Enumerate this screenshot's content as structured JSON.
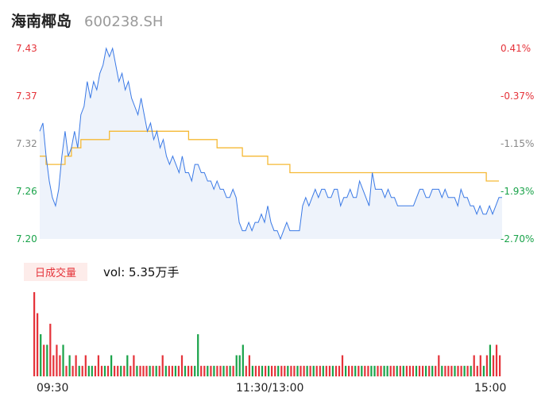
{
  "header": {
    "name": "海南椰岛",
    "code": "600238.SH"
  },
  "volume": {
    "badge": "日成交量",
    "text": "vol: 5.35万手"
  },
  "colors": {
    "price_line": "#3b7ae6",
    "avg_line": "#f5b935",
    "up": "#e5333a",
    "down": "#1aa34a",
    "neutral": "#888888"
  },
  "chart_data": [
    {
      "type": "line",
      "series": [
        {
          "values": [
            7.33,
            7.34,
            7.3,
            7.27,
            7.25,
            7.24,
            7.26,
            7.3,
            7.33,
            7.3,
            7.31,
            7.33,
            7.31,
            7.35,
            7.36,
            7.39,
            7.37,
            7.39,
            7.38,
            7.4,
            7.41,
            7.43,
            7.42,
            7.43,
            7.41,
            7.39,
            7.4,
            7.38,
            7.39,
            7.37,
            7.36,
            7.35,
            7.37,
            7.35,
            7.33,
            7.34,
            7.32,
            7.33,
            7.31,
            7.32,
            7.3,
            7.29,
            7.3,
            7.29,
            7.28,
            7.3,
            7.28,
            7.28,
            7.27,
            7.29,
            7.29,
            7.28,
            7.28,
            7.27,
            7.27,
            7.26,
            7.27,
            7.26,
            7.26,
            7.25,
            7.25,
            7.26,
            7.25,
            7.22,
            7.21,
            7.21,
            7.22,
            7.21,
            7.22,
            7.22,
            7.23,
            7.22,
            7.24,
            7.22,
            7.21,
            7.21,
            7.2,
            7.21,
            7.22,
            7.21,
            7.21,
            7.21,
            7.21,
            7.24,
            7.25,
            7.24,
            7.25,
            7.26,
            7.25,
            7.26,
            7.26,
            7.25,
            7.25,
            7.26,
            7.26,
            7.24,
            7.25,
            7.25,
            7.26,
            7.25,
            7.25,
            7.27,
            7.26,
            7.25,
            7.24,
            7.28,
            7.26,
            7.26,
            7.26,
            7.25,
            7.26,
            7.25,
            7.25,
            7.24,
            7.24,
            7.24,
            7.24,
            7.24,
            7.24,
            7.25,
            7.26,
            7.26,
            7.25,
            7.25,
            7.26,
            7.26,
            7.26,
            7.25,
            7.26,
            7.25,
            7.25,
            7.25,
            7.24,
            7.26,
            7.25,
            7.25,
            7.24,
            7.24,
            7.23,
            7.24,
            7.23,
            7.23,
            7.24,
            7.23,
            7.24,
            7.25,
            7.25
          ]
        },
        {
          "values": [
            7.3,
            7.3,
            7.29,
            7.29,
            7.29,
            7.29,
            7.29,
            7.29,
            7.3,
            7.3,
            7.31,
            7.31,
            7.31,
            7.32,
            7.32,
            7.32,
            7.32,
            7.32,
            7.32,
            7.32,
            7.32,
            7.32,
            7.33,
            7.33,
            7.33,
            7.33,
            7.33,
            7.33,
            7.33,
            7.33,
            7.33,
            7.33,
            7.33,
            7.33,
            7.33,
            7.33,
            7.33,
            7.33,
            7.33,
            7.33,
            7.33,
            7.33,
            7.33,
            7.33,
            7.33,
            7.33,
            7.33,
            7.32,
            7.32,
            7.32,
            7.32,
            7.32,
            7.32,
            7.32,
            7.32,
            7.32,
            7.31,
            7.31,
            7.31,
            7.31,
            7.31,
            7.31,
            7.31,
            7.31,
            7.3,
            7.3,
            7.3,
            7.3,
            7.3,
            7.3,
            7.3,
            7.3,
            7.29,
            7.29,
            7.29,
            7.29,
            7.29,
            7.29,
            7.29,
            7.28,
            7.28,
            7.28,
            7.28,
            7.28,
            7.28,
            7.28,
            7.28,
            7.28,
            7.28,
            7.28,
            7.28,
            7.28,
            7.28,
            7.28,
            7.28,
            7.28,
            7.28,
            7.28,
            7.28,
            7.28,
            7.28,
            7.28,
            7.28,
            7.28,
            7.28,
            7.28,
            7.28,
            7.28,
            7.28,
            7.28,
            7.28,
            7.28,
            7.28,
            7.28,
            7.28,
            7.28,
            7.28,
            7.28,
            7.28,
            7.28,
            7.28,
            7.28,
            7.28,
            7.28,
            7.28,
            7.28,
            7.28,
            7.28,
            7.28,
            7.28,
            7.28,
            7.28,
            7.28,
            7.28,
            7.28,
            7.28,
            7.28,
            7.28,
            7.28,
            7.28,
            7.28,
            7.27,
            7.27,
            7.27,
            7.27,
            7.27
          ]
        }
      ],
      "y_ticks": [
        "7.43",
        "7.37",
        "7.32",
        "7.26",
        "7.20"
      ],
      "y_ticks_right": [
        "0.41%",
        "-0.37%",
        "-1.15%",
        "-1.93%",
        "-2.70%"
      ],
      "ylim": [
        7.2,
        7.43
      ]
    },
    {
      "type": "bar",
      "values": [
        8,
        6,
        4,
        3,
        3,
        5,
        2,
        3,
        2,
        3,
        1,
        2,
        1,
        2,
        1,
        1,
        2,
        1,
        1,
        1,
        2,
        1,
        1,
        1,
        2,
        1,
        1,
        1,
        1,
        2,
        1,
        2,
        1,
        1,
        1,
        1,
        1,
        1,
        1,
        1,
        2,
        1,
        1,
        1,
        1,
        1,
        2,
        1,
        1,
        1,
        1,
        4,
        1,
        1,
        1,
        1,
        1,
        1,
        1,
        1,
        1,
        1,
        1,
        2,
        2,
        3,
        1,
        2,
        1,
        1,
        1,
        1,
        1,
        1,
        1,
        1,
        1,
        1,
        1,
        1,
        1,
        1,
        1,
        1,
        1,
        1,
        1,
        1,
        1,
        1,
        1,
        1,
        1,
        1,
        1,
        1,
        2,
        1,
        1,
        1,
        1,
        1,
        1,
        1,
        1,
        1,
        1,
        1,
        1,
        1,
        1,
        1,
        1,
        1,
        1,
        1,
        1,
        1,
        1,
        1,
        1,
        1,
        1,
        1,
        1,
        1,
        2,
        1,
        1,
        1,
        1,
        1,
        1,
        1,
        1,
        1,
        1,
        2,
        1,
        2,
        1,
        2,
        3,
        2,
        3,
        2
      ],
      "colors": [
        "r",
        "r",
        "g",
        "r",
        "g",
        "r",
        "r",
        "r",
        "r",
        "g",
        "r",
        "g",
        "r",
        "r",
        "g",
        "r",
        "r",
        "g",
        "g",
        "r",
        "r",
        "r",
        "g",
        "r",
        "g",
        "r",
        "r",
        "g",
        "r",
        "g",
        "r",
        "r",
        "g",
        "r",
        "r",
        "r",
        "g",
        "r",
        "g",
        "r",
        "r",
        "g",
        "r",
        "r",
        "g",
        "r",
        "r",
        "g",
        "r",
        "r",
        "g",
        "g",
        "r",
        "r",
        "g",
        "r",
        "g",
        "r",
        "r",
        "g",
        "r",
        "g",
        "r",
        "g",
        "g",
        "g",
        "r",
        "r",
        "g",
        "r",
        "r",
        "g",
        "r",
        "g",
        "r",
        "r",
        "g",
        "r",
        "r",
        "g",
        "r",
        "r",
        "g",
        "r",
        "r",
        "g",
        "r",
        "g",
        "r",
        "r",
        "g",
        "r",
        "r",
        "g",
        "r",
        "r",
        "r",
        "g",
        "r",
        "r",
        "g",
        "r",
        "g",
        "r",
        "r",
        "g",
        "g",
        "r",
        "r",
        "g",
        "g",
        "r",
        "r",
        "g",
        "r",
        "g",
        "r",
        "r",
        "r",
        "g",
        "r",
        "r",
        "g",
        "r",
        "g",
        "r",
        "r",
        "g",
        "r",
        "r",
        "r",
        "g",
        "r",
        "r",
        "g",
        "r",
        "g",
        "r",
        "r",
        "r",
        "g",
        "r",
        "g",
        "r",
        "r",
        "r"
      ],
      "x_ticks": [
        "09:30",
        "11:30/13:00",
        "15:00"
      ]
    }
  ]
}
